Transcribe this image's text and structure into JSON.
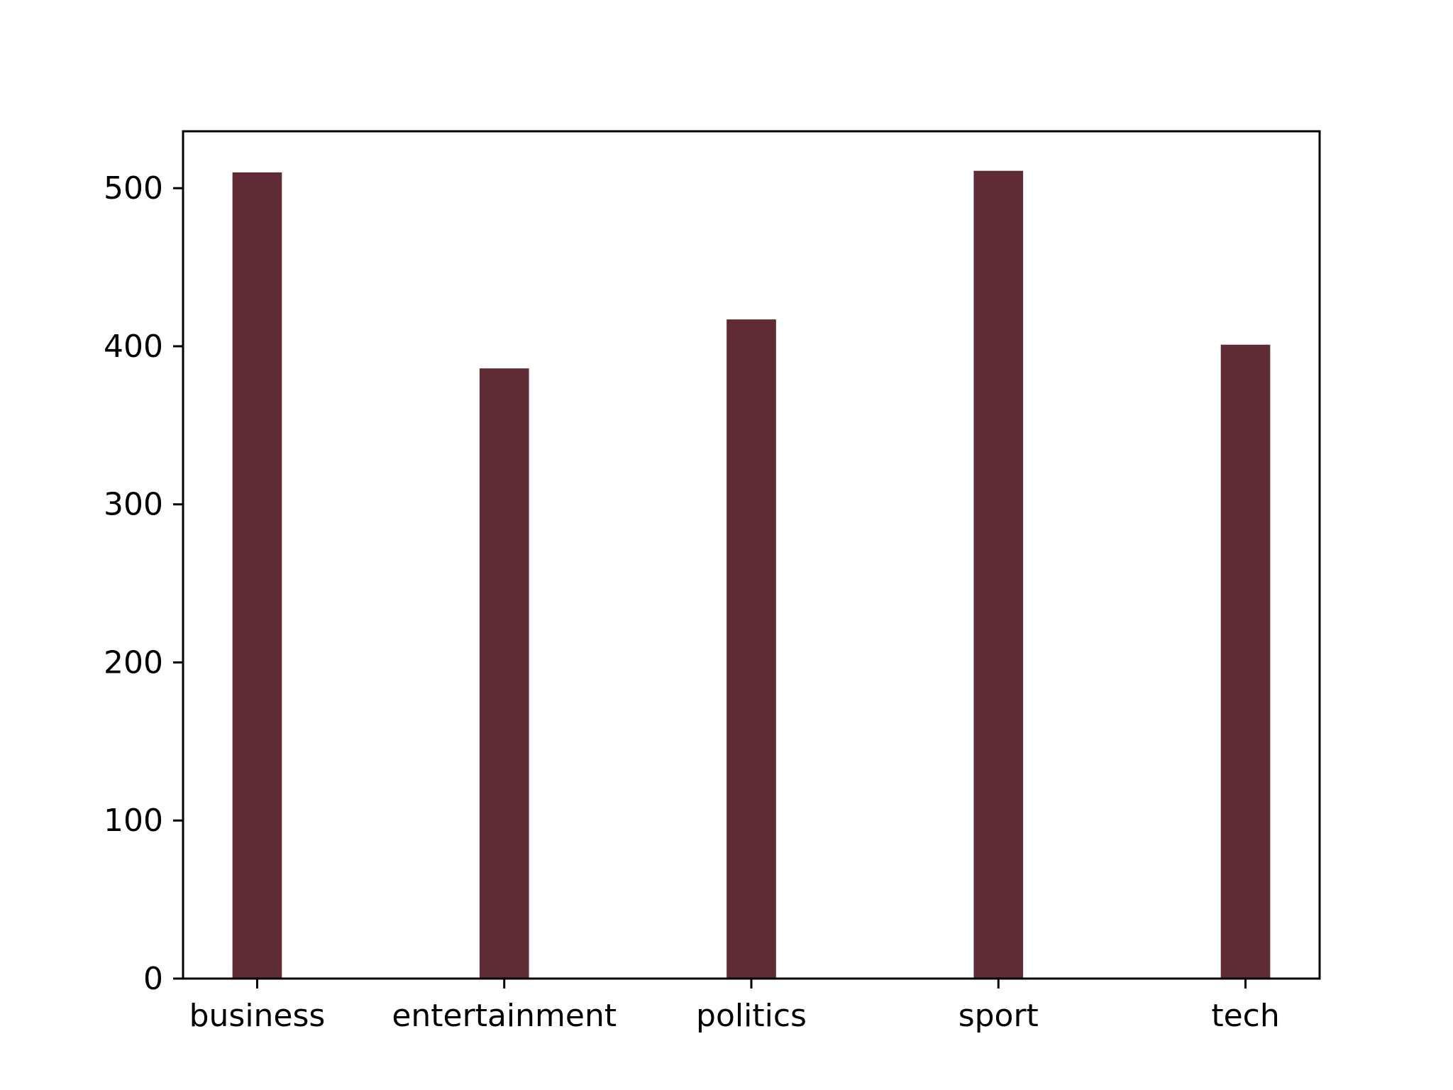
{
  "chart_data": {
    "type": "bar",
    "title": "",
    "xlabel": "",
    "ylabel": "",
    "categories": [
      "business",
      "entertainment",
      "politics",
      "sport",
      "tech"
    ],
    "values": [
      510,
      386,
      417,
      511,
      401
    ],
    "ylim": [
      0,
      536
    ],
    "yticks": [
      0,
      100,
      200,
      300,
      400,
      500
    ],
    "grid": false,
    "legend": "none",
    "colors": {
      "bar": "#5f2c35",
      "axis": "#000000",
      "background": "#ffffff"
    }
  }
}
